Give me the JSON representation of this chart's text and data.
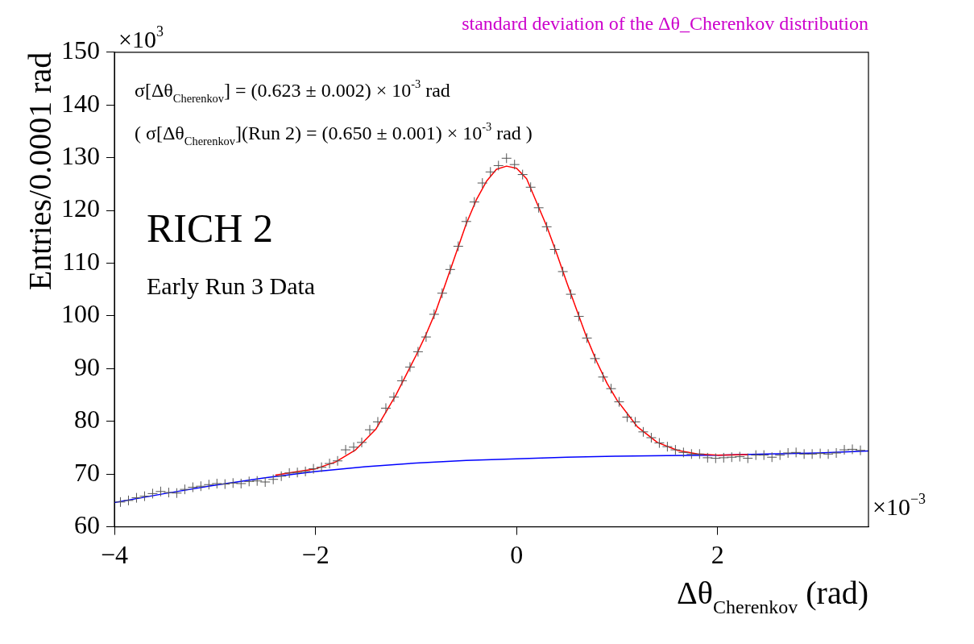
{
  "chart_data": {
    "type": "scatter",
    "title": "standard deviation of the Δθ_Cherenkov distribution",
    "xlabel": "Δθ$_{Cherenkov}$ (rad)",
    "ylabel": "Entries/0.0001 rad",
    "annotations": [
      "σ[Δθ$_{Cherenkov}$] = (0.623 ± 0.002) × 10$^{-3}$ rad",
      "( σ[Δθ$_{Cherenkov}$](Run 2) = (0.650 ± 0.001) × 10$^{-3}$ rad )",
      "RICH 2",
      "Early Run 3 Data",
      "×10$^{3}$",
      "×10$^{−3}$"
    ],
    "series": [
      {
        "marker": "cross",
        "color": "#555555",
        "x": [
          -3.94,
          -3.86,
          -3.78,
          -3.7,
          -3.62,
          -3.54,
          -3.46,
          -3.38,
          -3.3,
          -3.22,
          -3.14,
          -3.06,
          -2.98,
          -2.9,
          -2.82,
          -2.74,
          -2.66,
          -2.58,
          -2.5,
          -2.42,
          -2.34,
          -2.26,
          -2.18,
          -2.1,
          -2.02,
          -1.94,
          -1.86,
          -1.78,
          -1.7,
          -1.62,
          -1.54,
          -1.46,
          -1.38,
          -1.3,
          -1.22,
          -1.14,
          -1.06,
          -0.98,
          -0.9,
          -0.82,
          -0.74,
          -0.66,
          -0.58,
          -0.5,
          -0.42,
          -0.34,
          -0.26,
          -0.18,
          -0.1,
          -0.02,
          0.06,
          0.14,
          0.22,
          0.3,
          0.38,
          0.46,
          0.54,
          0.62,
          0.7,
          0.78,
          0.86,
          0.94,
          1.02,
          1.1,
          1.18,
          1.26,
          1.34,
          1.42,
          1.5,
          1.58,
          1.66,
          1.74,
          1.82,
          1.9,
          1.98,
          2.06,
          2.14,
          2.22,
          2.3,
          2.38,
          2.46,
          2.54,
          2.62,
          2.7,
          2.78,
          2.86,
          2.94,
          3.02,
          3.1,
          3.18,
          3.26,
          3.34,
          3.42
        ],
        "values": [
          64.7,
          65.0,
          65.5,
          65.8,
          66.3,
          66.7,
          66.5,
          66.4,
          67.1,
          67.5,
          67.7,
          68.0,
          68.2,
          68.1,
          68.3,
          68.2,
          68.6,
          68.7,
          68.5,
          69.0,
          69.6,
          70.2,
          70.3,
          70.5,
          71.0,
          71.3,
          72.0,
          72.5,
          74.6,
          75.1,
          76.0,
          78.4,
          79.9,
          82.5,
          84.6,
          87.7,
          90.3,
          93.2,
          96.0,
          100.3,
          104.3,
          108.8,
          113.2,
          117.9,
          121.6,
          125.2,
          127.3,
          128.5,
          129.9,
          128.7,
          126.8,
          124.4,
          120.5,
          116.9,
          112.6,
          108.4,
          104.1,
          99.9,
          95.8,
          91.9,
          88.4,
          86.2,
          83.7,
          80.8,
          79.9,
          78.0,
          76.9,
          75.9,
          75.2,
          74.6,
          74.1,
          73.8,
          73.8,
          73.1,
          73.0,
          73.1,
          73.2,
          73.3,
          73.0,
          73.6,
          73.6,
          73.2,
          73.6,
          74.0,
          74.1,
          73.8,
          73.8,
          73.9,
          73.8,
          74.0,
          74.6,
          74.7,
          74.5
        ]
      },
      {
        "type": "line",
        "color": "#ff0000",
        "x": [
          -2.4,
          -2.2,
          -2.0,
          -1.8,
          -1.6,
          -1.4,
          -1.2,
          -1.0,
          -0.9,
          -0.8,
          -0.7,
          -0.6,
          -0.5,
          -0.4,
          -0.3,
          -0.2,
          -0.1,
          0.0,
          0.1,
          0.2,
          0.3,
          0.4,
          0.5,
          0.6,
          0.7,
          0.8,
          0.9,
          1.0,
          1.2,
          1.4,
          1.6,
          1.8,
          2.0,
          2.3
        ],
        "values": [
          69.8,
          70.4,
          71.0,
          72.3,
          74.6,
          78.5,
          85.0,
          92.5,
          96.5,
          101.0,
          106.5,
          112.0,
          117.5,
          122.0,
          125.5,
          127.8,
          128.4,
          128.0,
          126.0,
          121.5,
          117.0,
          111.8,
          106.3,
          101.0,
          95.8,
          91.2,
          87.2,
          84.0,
          79.0,
          76.0,
          74.5,
          73.8,
          73.6,
          73.7
        ]
      },
      {
        "type": "line",
        "color": "#0000ff",
        "x": [
          -4,
          -3.5,
          -3,
          -2.5,
          -2,
          -1.5,
          -1,
          -0.5,
          0,
          0.5,
          1,
          1.5,
          2,
          2.5,
          3,
          3.5
        ],
        "values": [
          64.6,
          66.3,
          67.9,
          69.3,
          70.5,
          71.4,
          72.1,
          72.6,
          72.9,
          73.2,
          73.4,
          73.5,
          73.6,
          73.8,
          74.0,
          74.4
        ]
      }
    ],
    "xlim": [
      -4,
      3.5
    ],
    "xticks": [
      {
        "value": -4,
        "label": "−4"
      },
      {
        "value": -2,
        "label": "−2"
      },
      0,
      2
    ],
    "ylim": [
      60,
      150
    ],
    "yticks": [
      60,
      70,
      80,
      90,
      100,
      110,
      120,
      130,
      140,
      150
    ],
    "grid": false,
    "legend": false
  }
}
